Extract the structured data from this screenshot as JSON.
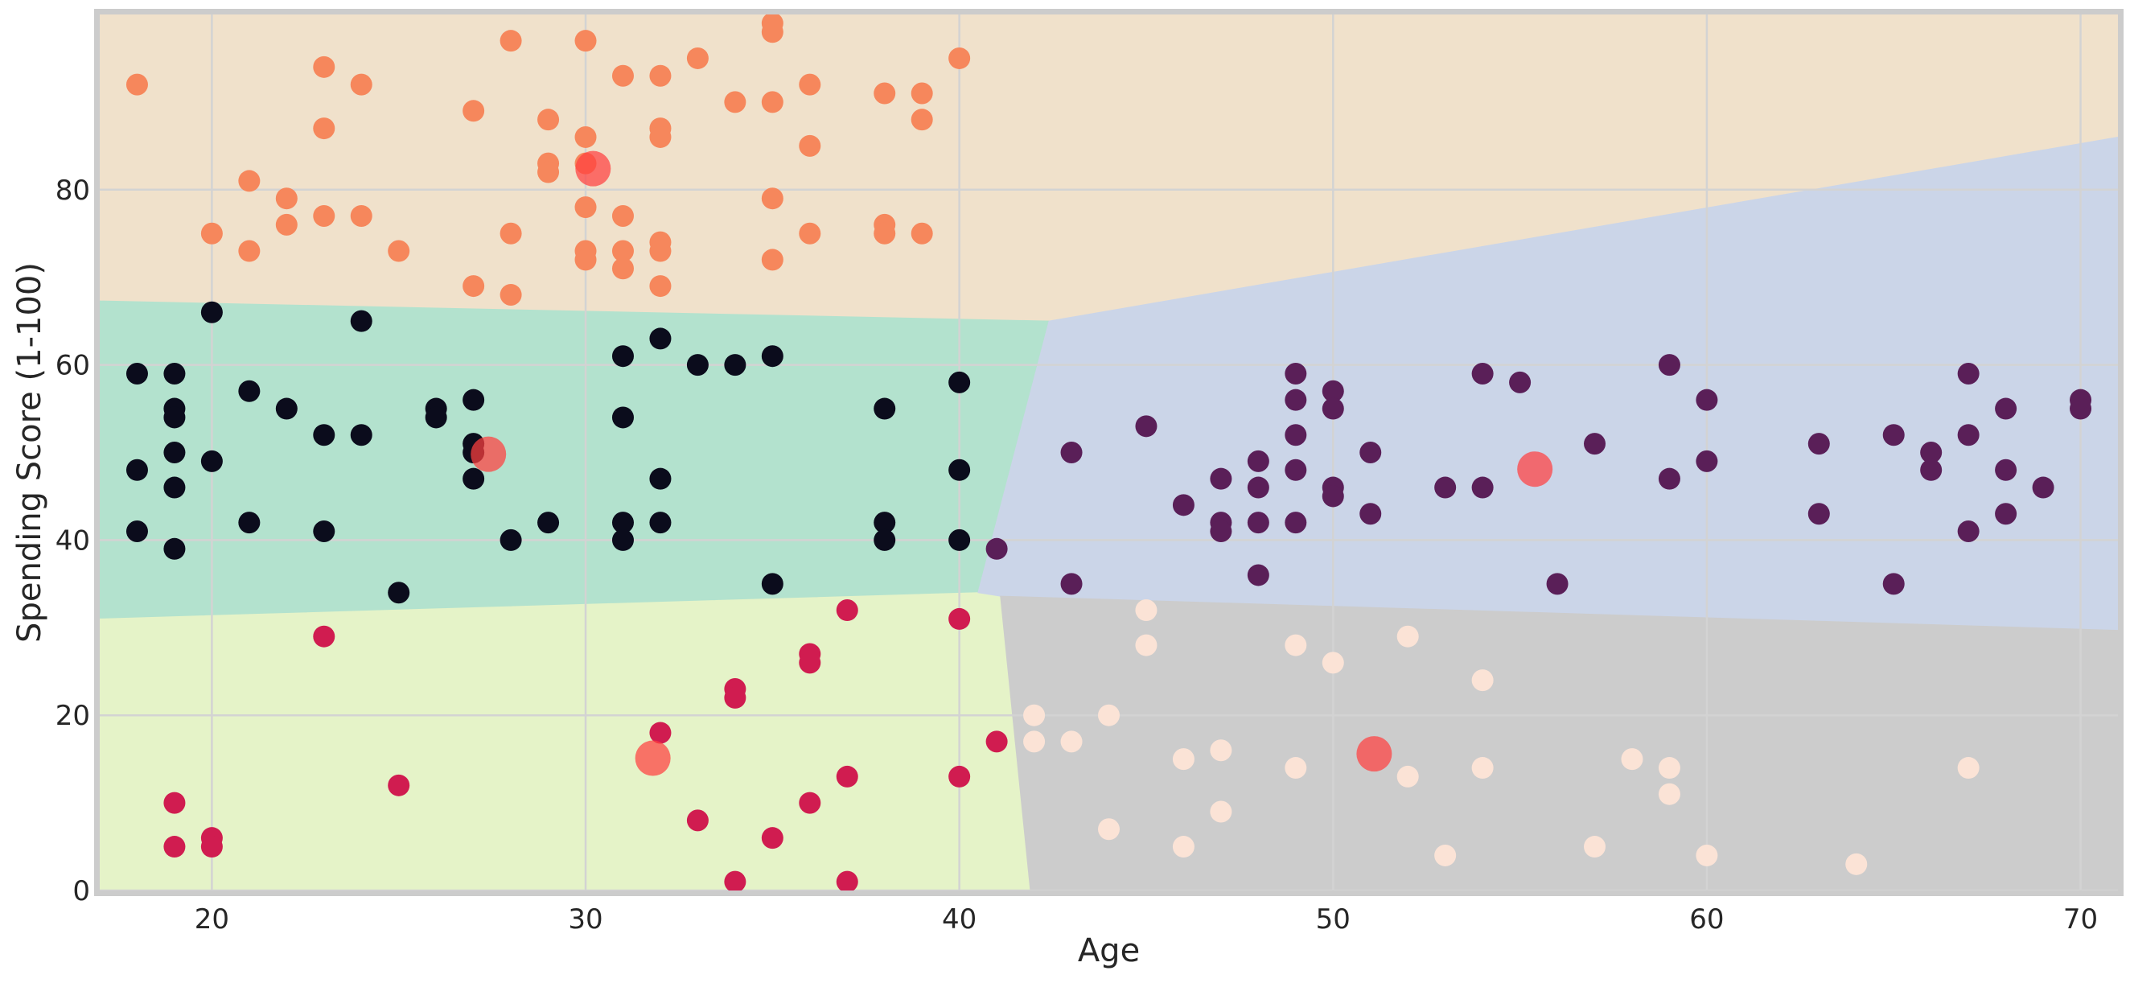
{
  "chart_data": {
    "type": "scatter",
    "title": "",
    "xlabel": "Age",
    "ylabel": "Spending Score (1-100)",
    "xlim": [
      17,
      71
    ],
    "ylim": [
      0,
      100
    ],
    "xticks": [
      20,
      30,
      40,
      50,
      60,
      70
    ],
    "yticks": [
      0,
      20,
      40,
      60,
      80
    ],
    "grid": true,
    "legend": "none",
    "colors": {
      "background_frame": "#cccccc",
      "grid": "#d3d3d3",
      "region_high_score": "#f0e1cb",
      "region_mid_young": "#b3e2ce",
      "region_low_young": "#e5f3c8",
      "region_mid_old": "#cbd5e8",
      "region_low_old": "#cccccc",
      "centroid": "#ff4040"
    },
    "series": [
      {
        "color": "#f6875c",
        "points": [
          [
            18,
            92
          ],
          [
            20,
            75
          ],
          [
            21,
            81
          ],
          [
            21,
            73
          ],
          [
            22,
            79
          ],
          [
            22,
            76
          ],
          [
            23,
            94
          ],
          [
            23,
            87
          ],
          [
            23,
            77
          ],
          [
            24,
            92
          ],
          [
            24,
            77
          ],
          [
            25,
            73
          ],
          [
            27,
            89
          ],
          [
            27,
            69
          ],
          [
            28,
            97
          ],
          [
            28,
            75
          ],
          [
            28,
            68
          ],
          [
            29,
            88
          ],
          [
            29,
            83
          ],
          [
            29,
            82
          ],
          [
            30,
            97
          ],
          [
            30,
            86
          ],
          [
            30,
            83
          ],
          [
            30,
            78
          ],
          [
            30,
            73
          ],
          [
            30,
            72
          ],
          [
            31,
            93
          ],
          [
            31,
            77
          ],
          [
            31,
            73
          ],
          [
            31,
            71
          ],
          [
            32,
            93
          ],
          [
            32,
            87
          ],
          [
            32,
            86
          ],
          [
            32,
            74
          ],
          [
            32,
            73
          ],
          [
            32,
            69
          ],
          [
            33,
            95
          ],
          [
            34,
            90
          ],
          [
            35,
            99
          ],
          [
            35,
            98
          ],
          [
            35,
            90
          ],
          [
            35,
            79
          ],
          [
            35,
            72
          ],
          [
            36,
            92
          ],
          [
            36,
            85
          ],
          [
            36,
            75
          ],
          [
            38,
            91
          ],
          [
            38,
            76
          ],
          [
            38,
            75
          ],
          [
            39,
            91
          ],
          [
            39,
            88
          ],
          [
            39,
            75
          ],
          [
            40,
            95
          ]
        ]
      },
      {
        "color": "#0b0c1c",
        "points": [
          [
            18,
            59
          ],
          [
            18,
            48
          ],
          [
            18,
            41
          ],
          [
            19,
            59
          ],
          [
            19,
            55
          ],
          [
            19,
            54
          ],
          [
            19,
            50
          ],
          [
            19,
            46
          ],
          [
            19,
            39
          ],
          [
            20,
            66
          ],
          [
            20,
            49
          ],
          [
            21,
            57
          ],
          [
            21,
            42
          ],
          [
            22,
            55
          ],
          [
            23,
            52
          ],
          [
            23,
            41
          ],
          [
            24,
            65
          ],
          [
            24,
            52
          ],
          [
            25,
            34
          ],
          [
            26,
            55
          ],
          [
            26,
            54
          ],
          [
            27,
            56
          ],
          [
            27,
            51
          ],
          [
            27,
            50
          ],
          [
            27,
            47
          ],
          [
            28,
            40
          ],
          [
            29,
            42
          ],
          [
            31,
            61
          ],
          [
            31,
            54
          ],
          [
            31,
            42
          ],
          [
            31,
            40
          ],
          [
            32,
            63
          ],
          [
            32,
            47
          ],
          [
            32,
            42
          ],
          [
            33,
            60
          ],
          [
            34,
            60
          ],
          [
            35,
            61
          ],
          [
            35,
            35
          ],
          [
            38,
            55
          ],
          [
            38,
            42
          ],
          [
            38,
            40
          ],
          [
            40,
            58
          ],
          [
            40,
            48
          ],
          [
            40,
            40
          ]
        ]
      },
      {
        "color": "#d01c50",
        "points": [
          [
            19,
            10
          ],
          [
            19,
            5
          ],
          [
            20,
            6
          ],
          [
            20,
            5
          ],
          [
            23,
            29
          ],
          [
            25,
            12
          ],
          [
            32,
            18
          ],
          [
            33,
            8
          ],
          [
            34,
            23
          ],
          [
            34,
            22
          ],
          [
            34,
            1
          ],
          [
            35,
            6
          ],
          [
            36,
            27
          ],
          [
            36,
            26
          ],
          [
            36,
            10
          ],
          [
            37,
            32
          ],
          [
            37,
            13
          ],
          [
            37,
            1
          ],
          [
            40,
            31
          ],
          [
            40,
            13
          ],
          [
            41,
            17
          ]
        ]
      },
      {
        "color": "#5a1f58",
        "points": [
          [
            41,
            39
          ],
          [
            43,
            50
          ],
          [
            43,
            35
          ],
          [
            45,
            53
          ],
          [
            46,
            44
          ],
          [
            47,
            47
          ],
          [
            47,
            42
          ],
          [
            47,
            41
          ],
          [
            48,
            49
          ],
          [
            48,
            46
          ],
          [
            48,
            42
          ],
          [
            48,
            36
          ],
          [
            49,
            59
          ],
          [
            49,
            56
          ],
          [
            49,
            52
          ],
          [
            49,
            48
          ],
          [
            49,
            42
          ],
          [
            50,
            57
          ],
          [
            50,
            55
          ],
          [
            50,
            46
          ],
          [
            50,
            45
          ],
          [
            51,
            50
          ],
          [
            51,
            43
          ],
          [
            53,
            46
          ],
          [
            54,
            59
          ],
          [
            54,
            46
          ],
          [
            55,
            58
          ],
          [
            56,
            35
          ],
          [
            57,
            51
          ],
          [
            59,
            60
          ],
          [
            59,
            47
          ],
          [
            60,
            56
          ],
          [
            60,
            49
          ],
          [
            63,
            51
          ],
          [
            63,
            43
          ],
          [
            65,
            52
          ],
          [
            65,
            35
          ],
          [
            66,
            50
          ],
          [
            66,
            48
          ],
          [
            67,
            59
          ],
          [
            67,
            52
          ],
          [
            67,
            41
          ],
          [
            68,
            55
          ],
          [
            68,
            48
          ],
          [
            68,
            43
          ],
          [
            69,
            46
          ],
          [
            70,
            56
          ],
          [
            70,
            55
          ]
        ]
      },
      {
        "color": "#fbe3d6",
        "points": [
          [
            42,
            20
          ],
          [
            42,
            17
          ],
          [
            43,
            17
          ],
          [
            44,
            20
          ],
          [
            44,
            7
          ],
          [
            45,
            32
          ],
          [
            45,
            28
          ],
          [
            46,
            15
          ],
          [
            46,
            5
          ],
          [
            47,
            16
          ],
          [
            47,
            9
          ],
          [
            49,
            28
          ],
          [
            49,
            14
          ],
          [
            50,
            26
          ],
          [
            52,
            29
          ],
          [
            52,
            13
          ],
          [
            53,
            4
          ],
          [
            54,
            24
          ],
          [
            54,
            14
          ],
          [
            57,
            5
          ],
          [
            58,
            15
          ],
          [
            59,
            14
          ],
          [
            59,
            11
          ],
          [
            60,
            4
          ],
          [
            64,
            3
          ],
          [
            67,
            14
          ]
        ]
      }
    ],
    "centroids": [
      [
        30.2,
        82.4
      ],
      [
        27.4,
        49.8
      ],
      [
        31.8,
        15.1
      ],
      [
        55.4,
        48.1
      ],
      [
        51.1,
        15.6
      ]
    ],
    "regions": [
      {
        "name": "high-score",
        "color": "#f0e1cb",
        "polygon": [
          [
            17,
            100
          ],
          [
            71,
            100
          ],
          [
            71,
            86
          ],
          [
            42.4,
            65
          ],
          [
            17,
            67.3
          ]
        ]
      },
      {
        "name": "mid-young",
        "color": "#b3e2ce",
        "polygon": [
          [
            17,
            67.3
          ],
          [
            42.4,
            65
          ],
          [
            40.5,
            34
          ],
          [
            17,
            31
          ]
        ]
      },
      {
        "name": "low-young",
        "color": "#e5f3c8",
        "polygon": [
          [
            17,
            31
          ],
          [
            40.5,
            34
          ],
          [
            41.1,
            33.6
          ],
          [
            41.9,
            0
          ],
          [
            17,
            0
          ]
        ]
      },
      {
        "name": "mid-old",
        "color": "#cbd5e8",
        "polygon": [
          [
            42.4,
            65
          ],
          [
            71,
            86
          ],
          [
            71,
            29.7
          ],
          [
            41.1,
            33.6
          ],
          [
            40.5,
            34
          ]
        ]
      },
      {
        "name": "low-old",
        "color": "#cccccc",
        "polygon": [
          [
            41.1,
            33.6
          ],
          [
            71,
            29.7
          ],
          [
            71,
            0
          ],
          [
            41.9,
            0
          ]
        ]
      }
    ]
  }
}
